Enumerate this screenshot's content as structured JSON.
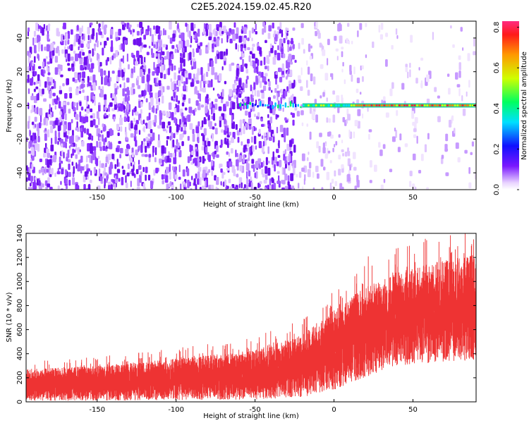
{
  "title": "C2E5.2024.159.02.45.R20",
  "chart_data": [
    {
      "type": "heatmap",
      "xlabel": "Height of straight line (km)",
      "ylabel": "Frequency (Hz)",
      "xlim": [
        -195,
        90
      ],
      "ylim": [
        -50,
        50
      ],
      "xticks": [
        -150,
        -100,
        -50,
        0,
        50
      ],
      "yticks": [
        -40,
        -20,
        0,
        20,
        40
      ],
      "grid": false,
      "colorbar": {
        "label": "Normalized spectral amplitude",
        "range": [
          0,
          0.83
        ],
        "ticks": [
          0.0,
          0.2,
          0.4,
          0.6,
          0.8
        ]
      },
      "ridge": {
        "frequency": 0,
        "visible_from_x": -60,
        "strongest_from_x": -20
      },
      "background": {
        "dense_until_x": -25,
        "fades_until_x": 15
      }
    },
    {
      "type": "area",
      "xlabel": "Height of straight line (km)",
      "ylabel": "SNR (10 * v/v)",
      "xlim": [
        -195,
        90
      ],
      "ylim": [
        0,
        1400
      ],
      "xticks": [
        -150,
        -100,
        -50,
        0,
        50
      ],
      "yticks": [
        0,
        200,
        400,
        600,
        800,
        1000,
        1200,
        1400
      ],
      "grid": false,
      "color": "#ee3333",
      "series": [
        {
          "x": [
            -195,
            -150,
            -100,
            -50,
            -20,
            0,
            20,
            40,
            60,
            90
          ],
          "lower": [
            10,
            10,
            15,
            20,
            40,
            100,
            200,
            300,
            320,
            350
          ],
          "upper": [
            270,
            300,
            360,
            430,
            560,
            760,
            960,
            1080,
            1150,
            1250
          ]
        }
      ]
    }
  ]
}
